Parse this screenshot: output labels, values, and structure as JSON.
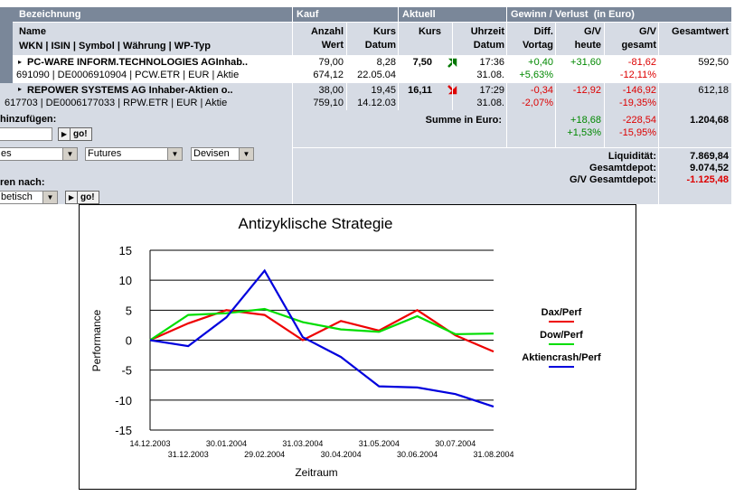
{
  "table": {
    "header1": {
      "bezeichnung": "Bezeichnung",
      "kauf": "Kauf",
      "aktuell": "Aktuell",
      "gewinn": "Gewinn / Verlust  (in Euro)"
    },
    "header2": {
      "name": "Name",
      "wkn": "WKN | ISIN | Symbol | Währung | WP-Typ",
      "anzahl": "Anzahl",
      "wert": "Wert",
      "kurs_kauf": "Kurs",
      "datum_kauf": "Datum",
      "kurs": "Kurs",
      "uhrzeit": "Uhrzeit",
      "datum": "Datum",
      "diff": "Diff.",
      "vortag": "Vortag",
      "gv1": "G/V",
      "heute": "heute",
      "gv2": "G/V",
      "gesamt": "gesamt",
      "gesamtwert": "Gesamtwert"
    },
    "rows": [
      {
        "name": "PC-WARE INFORM.TECHNOLOGIES AGInhab..",
        "ids": "691090 | DE0006910904 | PCW.ETR | EUR | Aktie",
        "anzahl": "79,00",
        "wert": "674,12",
        "kurs_kauf": "8,28",
        "datum_kauf": "22.05.04",
        "kurs": "7,50",
        "trend": "up",
        "uhrzeit": "17:36",
        "datum": "31.08.",
        "diff": "+0,40",
        "diff_pct": "+5,63%",
        "gv_heute": "+31,60",
        "gv_gesamt": "-81,62",
        "gv_gesamt_pct": "-12,11%",
        "gesamtwert": "592,50"
      },
      {
        "name": "REPOWER SYSTEMS AG Inhaber-Aktien o..",
        "ids": "617703 | DE0006177033 | RPW.ETR | EUR | Aktie",
        "anzahl": "38,00",
        "wert": "759,10",
        "kurs_kauf": "19,45",
        "datum_kauf": "14.12.03",
        "kurs": "16,11",
        "trend": "down",
        "uhrzeit": "17:29",
        "datum": "31.08.",
        "diff": "-0,34",
        "diff_pct": "-2,07%",
        "gv_heute": "-12,92",
        "gv_gesamt": "-146,92",
        "gv_gesamt_pct": "-19,35%",
        "gesamtwert": "612,18"
      }
    ],
    "summary": {
      "label": "Summe in Euro:",
      "gv_heute": "+18,68",
      "gv_heute_pct": "+1,53%",
      "gv_gesamt": "-228,54",
      "gv_gesamt_pct": "-15,95%",
      "gesamtwert": "1.204,68"
    },
    "totals": {
      "liquiditaet_label": "Liquidität:",
      "liquiditaet": "7.869,84",
      "gesamtdepot_label": "Gesamtdepot:",
      "gesamtdepot": "9.074,52",
      "gv_label": "G/V Gesamtdepot:",
      "gv": "-1.125,48"
    }
  },
  "controls": {
    "add_label": "hinzufügen:",
    "add_input": "",
    "go1": "go!",
    "select1": "es",
    "select2": "Futures",
    "select3": "Devisen",
    "sort_label": "ren nach:",
    "sort_select": "betisch",
    "go2": "go!"
  },
  "colors": {
    "header": "#7a8799",
    "row_gray": "#d6dbe4",
    "dax": "#ee0000",
    "dow": "#00dd00",
    "crash": "#0000dd"
  },
  "chart_data": {
    "type": "line",
    "title": "Antizyklische Strategie",
    "xlabel": "Zeitraum",
    "ylabel": "Performance",
    "ylim": [
      -15,
      15
    ],
    "yticks": [
      "15",
      "10",
      "5",
      "0",
      "-5",
      "-10",
      "-15"
    ],
    "yticks_values": [
      15,
      10,
      5,
      0,
      -5,
      -10,
      -15
    ],
    "categories": [
      "14.12.2003",
      "31.12.2003",
      "30.01.2004",
      "29.02.2004",
      "31.03.2004",
      "30.04.2004",
      "31.05.2004",
      "30.06.2004",
      "30.07.2004",
      "31.08.2004"
    ],
    "grid": true,
    "legend": "right",
    "series": [
      {
        "name": "Dax/Perf",
        "color": "#ee0000",
        "values": [
          0,
          2.8,
          5.0,
          4.2,
          0.0,
          3.2,
          1.6,
          5.0,
          0.8,
          -1.9
        ]
      },
      {
        "name": "Dow/Perf",
        "color": "#00dd00",
        "values": [
          0,
          4.2,
          4.5,
          5.2,
          3.0,
          1.8,
          1.4,
          4.0,
          1.0,
          1.1
        ]
      },
      {
        "name": "Aktiencrash/Perf",
        "color": "#0000dd",
        "values": [
          0,
          -1.0,
          3.8,
          11.6,
          0.5,
          -2.8,
          -7.7,
          -7.9,
          -9.0,
          -11.1
        ]
      }
    ]
  }
}
